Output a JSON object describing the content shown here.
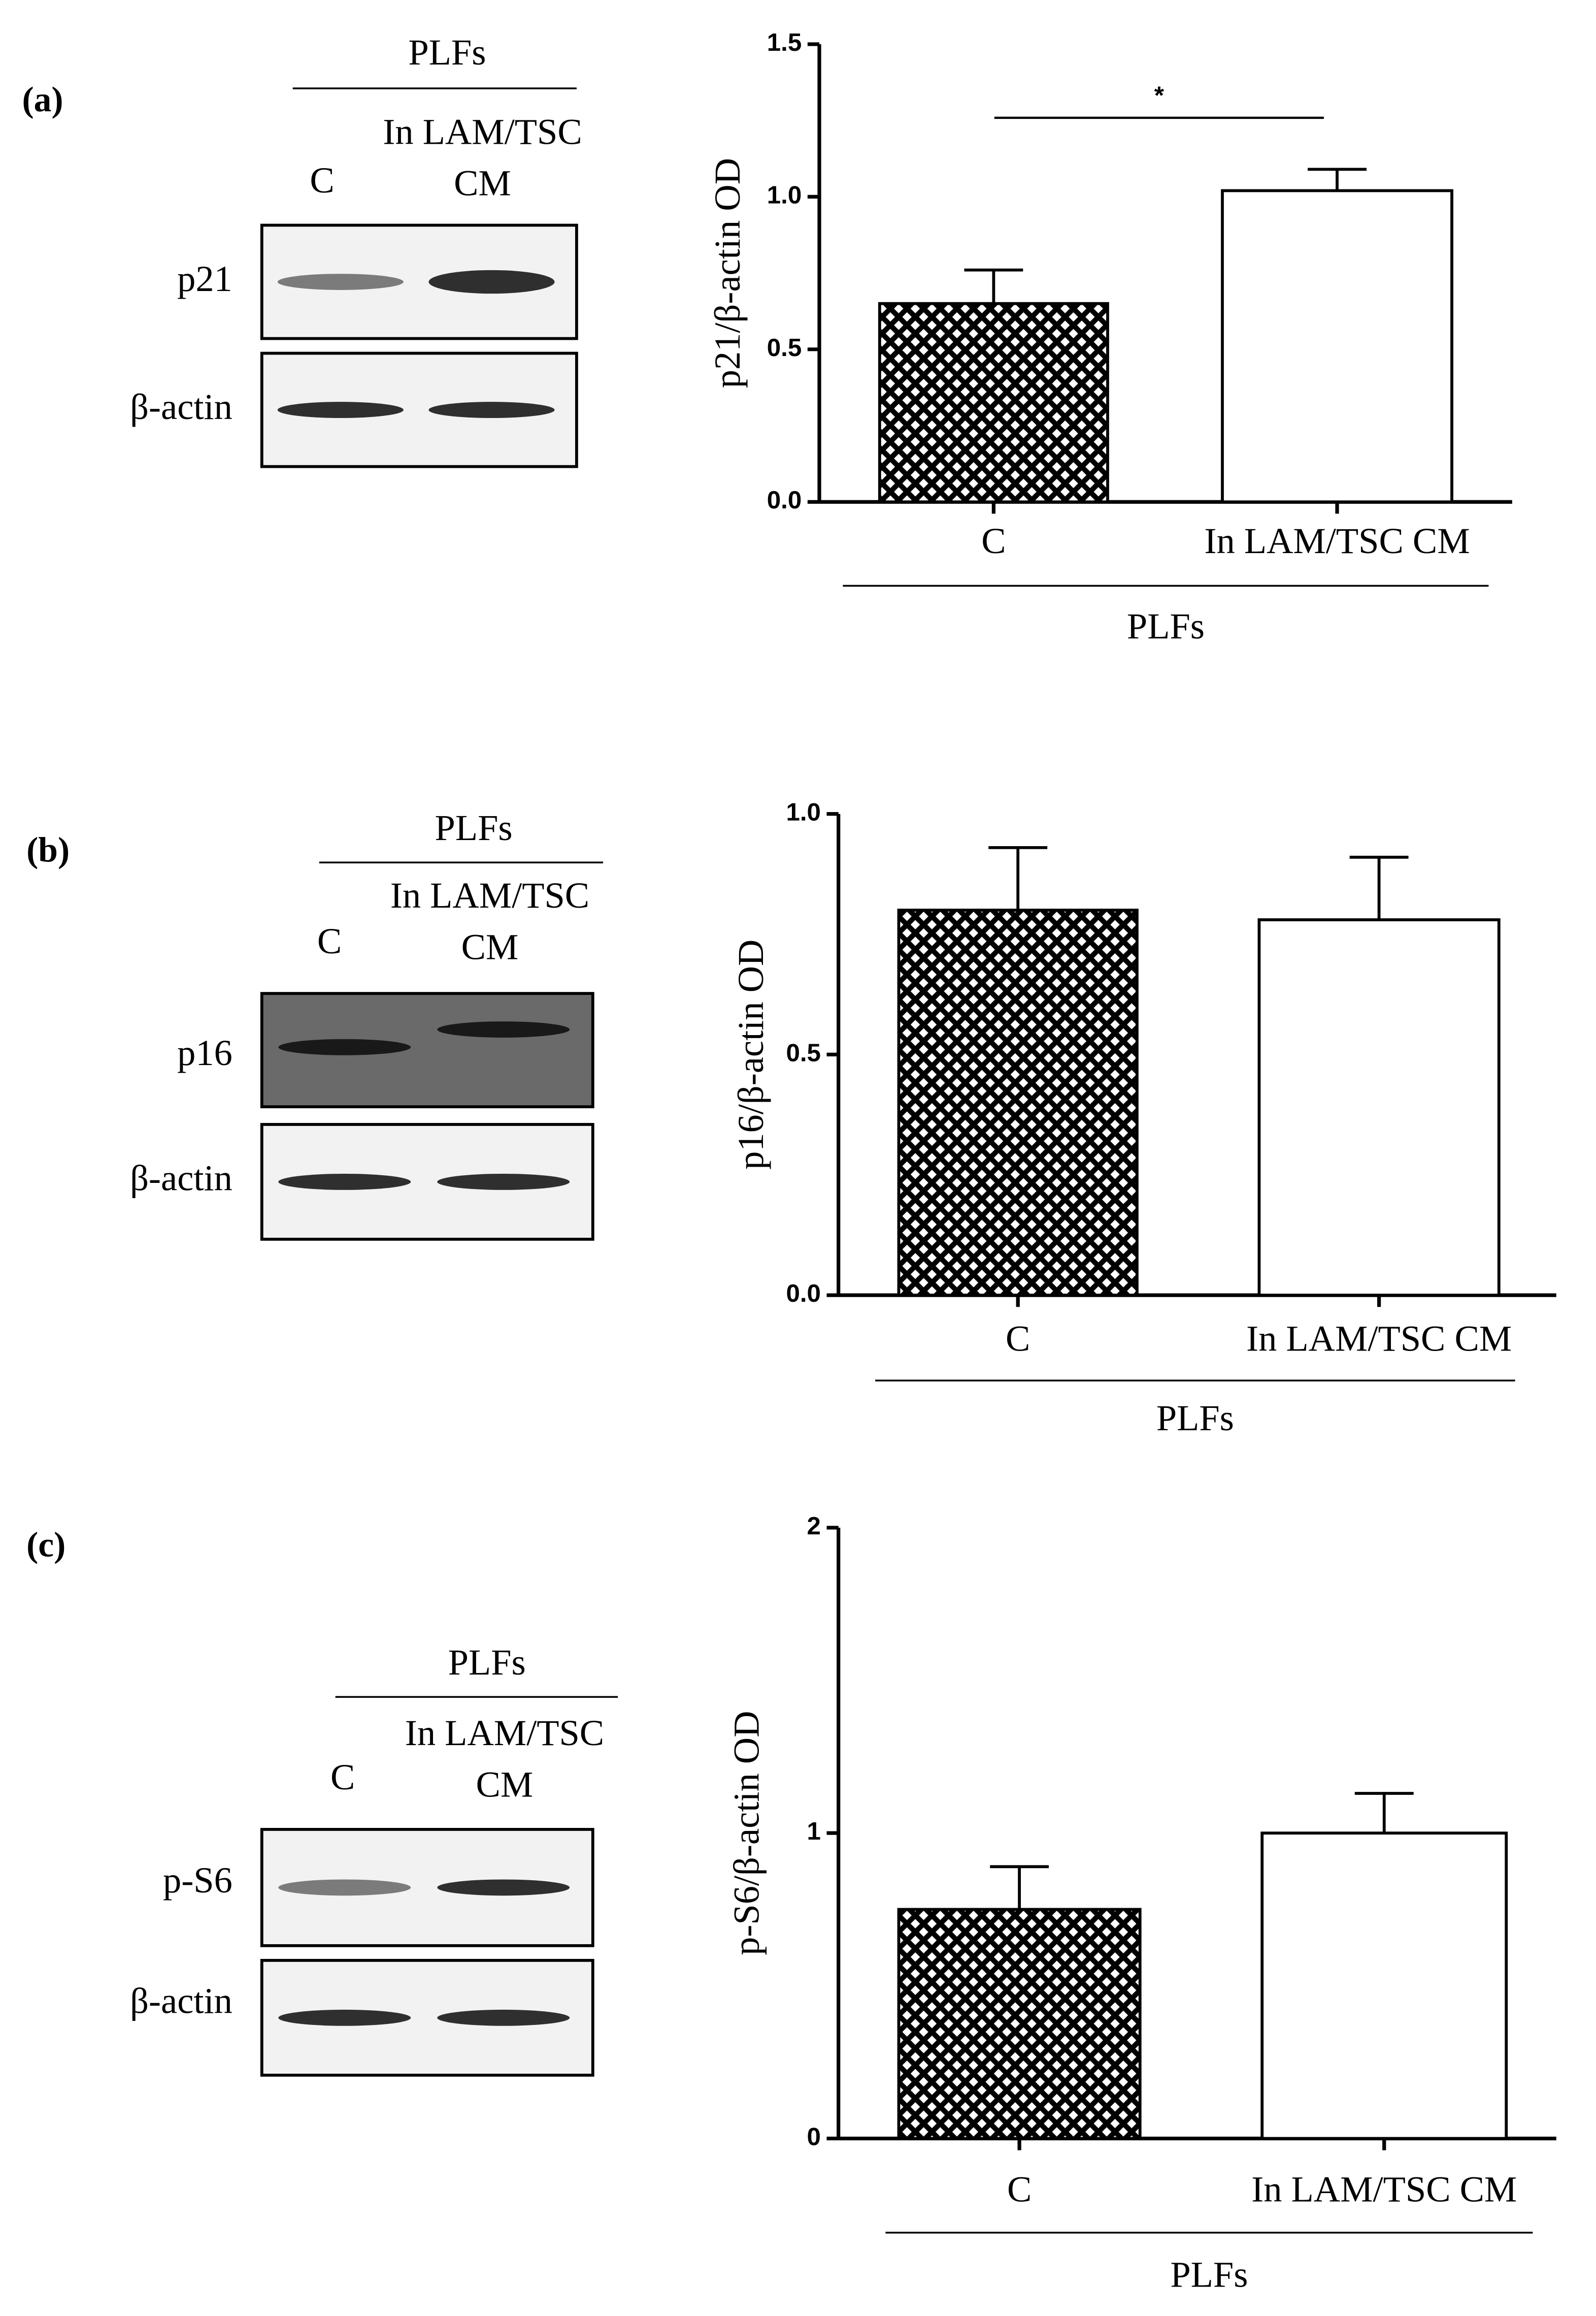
{
  "chart_data": [
    {
      "type": "bar",
      "panel_label": "(a)",
      "blot": {
        "group": "PLFs",
        "lanes": [
          [
            "C"
          ],
          [
            "In LAM/TSC",
            "CM"
          ]
        ],
        "rows": [
          "p21",
          "β-actin"
        ]
      },
      "categories": [
        "C",
        "In LAM/TSC CM"
      ],
      "values": [
        0.65,
        1.02
      ],
      "errors": [
        0.11,
        0.07
      ],
      "patterns": [
        "crosshatch",
        "none"
      ],
      "ylabel": "p21/β-actin OD",
      "x_group_label": "PLFs",
      "ylim": [
        0,
        1.5
      ],
      "yticks": [
        {
          "value": 0,
          "label": "0.0"
        },
        {
          "value": 0.5,
          "label": "0.5"
        },
        {
          "value": 1,
          "label": "1.0"
        },
        {
          "value": 1.5,
          "label": "1.5"
        }
      ],
      "annotations": [
        {
          "text": "*"
        }
      ]
    },
    {
      "type": "bar",
      "panel_label": "(b)",
      "blot": {
        "group": "PLFs",
        "lanes": [
          [
            "C"
          ],
          [
            "In LAM/TSC",
            "CM"
          ]
        ],
        "rows": [
          "p16",
          "β-actin"
        ]
      },
      "categories": [
        "C",
        "In LAM/TSC CM"
      ],
      "values": [
        0.8,
        0.78
      ],
      "errors": [
        0.13,
        0.13
      ],
      "patterns": [
        "crosshatch",
        "none"
      ],
      "ylabel": "p16/β-actin OD",
      "x_group_label": "PLFs",
      "ylim": [
        0,
        1
      ],
      "yticks": [
        {
          "value": 0,
          "label": "0.0"
        },
        {
          "value": 0.5,
          "label": "0.5"
        },
        {
          "value": 1,
          "label": "1.0"
        }
      ]
    },
    {
      "type": "bar",
      "panel_label": "(c)",
      "blot": {
        "group": "PLFs",
        "lanes": [
          [
            "C"
          ],
          [
            "In LAM/TSC",
            "CM"
          ]
        ],
        "rows": [
          "p-S6",
          "β-actin"
        ]
      },
      "categories": [
        "C",
        "In LAM/TSC CM"
      ],
      "values": [
        0.75,
        1.0
      ],
      "errors": [
        0.14,
        0.13
      ],
      "patterns": [
        "crosshatch",
        "none"
      ],
      "ylabel": "p-S6/β-actin OD",
      "x_group_label": "PLFs",
      "ylim": [
        0,
        2
      ],
      "yticks": [
        0,
        1,
        2
      ]
    }
  ]
}
